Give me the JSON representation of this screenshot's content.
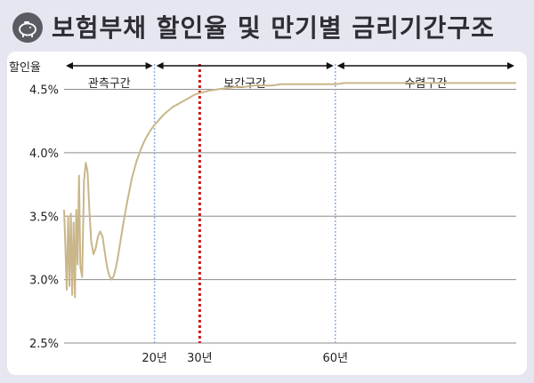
{
  "header": {
    "title": "보험부채 할인율 및 만기별 금리기간구조",
    "icon": "piggy-bank-icon"
  },
  "chart_data": {
    "type": "line",
    "title": "보험부채 할인율 및 만기별 금리기간구조",
    "ylabel": "할인율",
    "ylim": [
      2.5,
      4.7
    ],
    "y_ticks": [
      2.5,
      3.0,
      3.5,
      4.0,
      4.5
    ],
    "y_tick_labels": [
      "2.5%",
      "3.0%",
      "3.5%",
      "4.0%",
      "4.5%"
    ],
    "xlim": [
      0,
      100
    ],
    "x_ticks": [
      20,
      30,
      60
    ],
    "x_tick_labels": [
      "20년",
      "30년",
      "60년"
    ],
    "grid": true,
    "regions": [
      {
        "label": "관측구간",
        "from": 0,
        "to": 20
      },
      {
        "label": "보간구간",
        "from": 20,
        "to": 60
      },
      {
        "label": "수렴구간",
        "from": 60,
        "to": 100
      }
    ],
    "line_color": "#c9b68a",
    "marker_30_color": "#d11a1a",
    "boundary_color": "#8ab0e0",
    "series": [
      {
        "x": [
          0,
          0.3,
          0.6,
          0.9,
          1.2,
          1.5,
          1.8,
          2.1,
          2.4,
          2.7,
          3.0,
          3.3,
          3.6,
          4.0,
          4.4,
          4.8,
          5.2,
          5.6,
          6.0,
          6.5,
          7.0,
          7.5,
          8.0,
          8.5,
          9.0,
          9.5,
          10,
          10.5,
          11,
          11.5,
          12,
          13,
          14,
          15,
          16,
          17,
          18,
          19,
          20,
          21,
          22,
          23,
          24,
          25,
          26,
          27,
          28,
          29,
          30,
          32,
          34,
          36,
          38,
          40,
          42,
          44,
          46,
          48,
          50,
          52,
          55,
          58,
          60,
          62,
          65,
          70,
          75,
          80,
          85,
          90,
          95,
          100
        ],
        "y": [
          3.55,
          3.25,
          2.92,
          3.5,
          2.95,
          3.52,
          2.88,
          3.45,
          2.86,
          3.55,
          3.12,
          3.82,
          3.1,
          3.02,
          3.78,
          3.92,
          3.85,
          3.55,
          3.3,
          3.2,
          3.25,
          3.34,
          3.38,
          3.34,
          3.22,
          3.1,
          3.03,
          3.0,
          3.03,
          3.1,
          3.2,
          3.42,
          3.62,
          3.8,
          3.93,
          4.03,
          4.11,
          4.17,
          4.22,
          4.26,
          4.3,
          4.33,
          4.36,
          4.38,
          4.4,
          4.42,
          4.44,
          4.46,
          4.47,
          4.49,
          4.5,
          4.51,
          4.52,
          4.52,
          4.53,
          4.53,
          4.53,
          4.54,
          4.54,
          4.54,
          4.54,
          4.54,
          4.54,
          4.55,
          4.55,
          4.55,
          4.55,
          4.55,
          4.55,
          4.55,
          4.55,
          4.55
        ]
      }
    ]
  }
}
